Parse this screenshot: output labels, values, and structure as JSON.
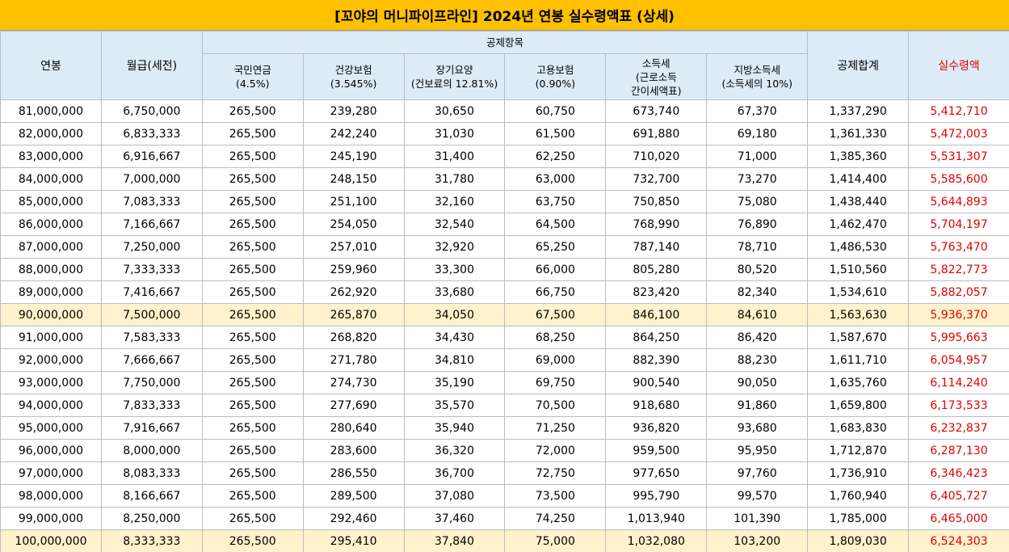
{
  "title": "[꼬야의 머니파이프라인] 2024년 연봉 실수령액표 (상세)",
  "header": {
    "salary": "연봉",
    "monthly": "월급(세전)",
    "group": "공제항목",
    "items": [
      [
        "국민연금",
        "(4.5%)"
      ],
      [
        "건강보험",
        "(3.545%)"
      ],
      [
        "장기요양",
        "(건보료의 12.81%)"
      ],
      [
        "고용보험",
        "(0.90%)"
      ],
      [
        "소득세",
        "(근로소득",
        "간이세액표)"
      ],
      [
        "지방소득세",
        "(소득세의 10%)"
      ]
    ],
    "total": "공제합계",
    "net": "실수령액"
  },
  "table": {
    "rows": [
      [
        "81,000,000",
        "6,750,000",
        "265,500",
        "239,280",
        "30,650",
        "60,750",
        "673,740",
        "67,370",
        "1,337,290",
        "5,412,710"
      ],
      [
        "82,000,000",
        "6,833,333",
        "265,500",
        "242,240",
        "31,030",
        "61,500",
        "691,880",
        "69,180",
        "1,361,330",
        "5,472,003"
      ],
      [
        "83,000,000",
        "6,916,667",
        "265,500",
        "245,190",
        "31,400",
        "62,250",
        "710,020",
        "71,000",
        "1,385,360",
        "5,531,307"
      ],
      [
        "84,000,000",
        "7,000,000",
        "265,500",
        "248,150",
        "31,780",
        "63,000",
        "732,700",
        "73,270",
        "1,414,400",
        "5,585,600"
      ],
      [
        "85,000,000",
        "7,083,333",
        "265,500",
        "251,100",
        "32,160",
        "63,750",
        "750,850",
        "75,080",
        "1,438,440",
        "5,644,893"
      ],
      [
        "86,000,000",
        "7,166,667",
        "265,500",
        "254,050",
        "32,540",
        "64,500",
        "768,990",
        "76,890",
        "1,462,470",
        "5,704,197"
      ],
      [
        "87,000,000",
        "7,250,000",
        "265,500",
        "257,010",
        "32,920",
        "65,250",
        "787,140",
        "78,710",
        "1,486,530",
        "5,763,470"
      ],
      [
        "88,000,000",
        "7,333,333",
        "265,500",
        "259,960",
        "33,300",
        "66,000",
        "805,280",
        "80,520",
        "1,510,560",
        "5,822,773"
      ],
      [
        "89,000,000",
        "7,416,667",
        "265,500",
        "262,920",
        "33,680",
        "66,750",
        "823,420",
        "82,340",
        "1,534,610",
        "5,882,057"
      ],
      [
        "90,000,000",
        "7,500,000",
        "265,500",
        "265,870",
        "34,050",
        "67,500",
        "846,100",
        "84,610",
        "1,563,630",
        "5,936,370"
      ],
      [
        "91,000,000",
        "7,583,333",
        "265,500",
        "268,820",
        "34,430",
        "68,250",
        "864,250",
        "86,420",
        "1,587,670",
        "5,995,663"
      ],
      [
        "92,000,000",
        "7,666,667",
        "265,500",
        "271,780",
        "34,810",
        "69,000",
        "882,390",
        "88,230",
        "1,611,710",
        "6,054,957"
      ],
      [
        "93,000,000",
        "7,750,000",
        "265,500",
        "274,730",
        "35,190",
        "69,750",
        "900,540",
        "90,050",
        "1,635,760",
        "6,114,240"
      ],
      [
        "94,000,000",
        "7,833,333",
        "265,500",
        "277,690",
        "35,570",
        "70,500",
        "918,680",
        "91,860",
        "1,659,800",
        "6,173,533"
      ],
      [
        "95,000,000",
        "7,916,667",
        "265,500",
        "280,640",
        "35,940",
        "71,250",
        "936,820",
        "93,680",
        "1,683,830",
        "6,232,837"
      ],
      [
        "96,000,000",
        "8,000,000",
        "265,500",
        "283,600",
        "36,320",
        "72,000",
        "959,500",
        "95,950",
        "1,712,870",
        "6,287,130"
      ],
      [
        "97,000,000",
        "8,083,333",
        "265,500",
        "286,550",
        "36,700",
        "72,750",
        "977,650",
        "97,760",
        "1,736,910",
        "6,346,423"
      ],
      [
        "98,000,000",
        "8,166,667",
        "265,500",
        "289,500",
        "37,080",
        "73,500",
        "995,790",
        "99,570",
        "1,760,940",
        "6,405,727"
      ],
      [
        "99,000,000",
        "8,250,000",
        "265,500",
        "292,460",
        "37,460",
        "74,250",
        "1,013,940",
        "101,390",
        "1,785,000",
        "6,465,000"
      ],
      [
        "100,000,000",
        "8,333,333",
        "265,500",
        "295,410",
        "37,840",
        "75,000",
        "1,032,080",
        "103,200",
        "1,809,030",
        "6,524,303"
      ]
    ]
  }
}
